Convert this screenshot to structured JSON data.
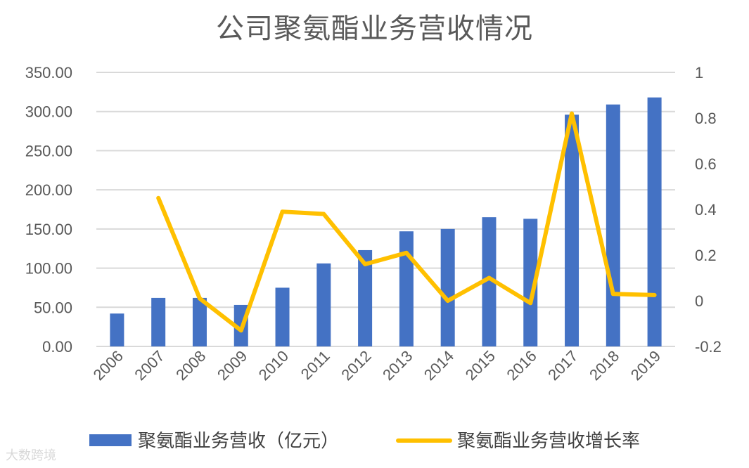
{
  "chart_data": {
    "type": "bar",
    "title": "公司聚氨酯业务营收情况",
    "categories": [
      "2006",
      "2007",
      "2008",
      "2009",
      "2010",
      "2011",
      "2012",
      "2013",
      "2014",
      "2015",
      "2016",
      "2017",
      "2018",
      "2019"
    ],
    "series": [
      {
        "name": "聚氨酯业务营收（亿元）",
        "type": "bar",
        "axis": "left",
        "color": "#4472C4",
        "values": [
          42,
          62,
          62,
          53,
          75,
          106,
          123,
          147,
          150,
          165,
          163,
          296,
          309,
          318
        ]
      },
      {
        "name": "聚氨酯业务营收增长率",
        "type": "line",
        "axis": "right",
        "color": "#FFC000",
        "values": [
          null,
          0.45,
          0.01,
          -0.13,
          0.39,
          0.38,
          0.16,
          0.21,
          0.0,
          0.1,
          -0.01,
          0.82,
          0.03,
          0.025
        ]
      }
    ],
    "y_left": {
      "min": 0,
      "max": 350,
      "ticks": [
        "0.00",
        "50.00",
        "100.00",
        "150.00",
        "200.00",
        "250.00",
        "300.00",
        "350.00"
      ]
    },
    "y_right": {
      "min": -0.2,
      "max": 1,
      "ticks": [
        "-0.2",
        "0",
        "0.2",
        "0.4",
        "0.6",
        "0.8",
        "1"
      ]
    },
    "grid": true,
    "legend_position": "bottom"
  },
  "watermark": "大数跨境"
}
